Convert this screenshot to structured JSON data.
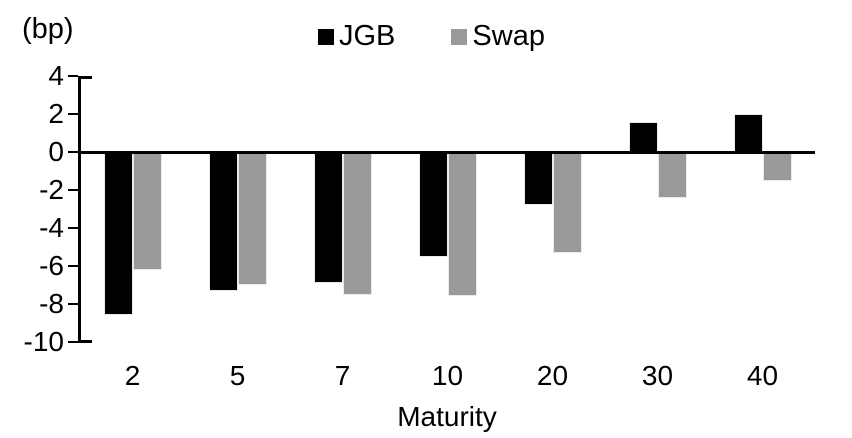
{
  "chart_data": {
    "type": "bar",
    "title": "",
    "unit_label": "(bp)",
    "xlabel": "Maturity",
    "categories": [
      "2",
      "5",
      "7",
      "10",
      "20",
      "30",
      "40"
    ],
    "series": [
      {
        "name": "JGB",
        "color": "#000000",
        "values": [
          -8.6,
          -7.3,
          -6.9,
          -5.5,
          -2.8,
          1.6,
          2.0
        ]
      },
      {
        "name": "Swap",
        "color": "#999999",
        "values": [
          -6.2,
          -7.0,
          -7.5,
          -7.6,
          -5.3,
          -2.4,
          -1.5
        ]
      }
    ],
    "y_ticks": [
      4,
      2,
      0,
      -2,
      -4,
      -6,
      -8,
      -10
    ],
    "ylim": [
      -10,
      4
    ],
    "grid": false,
    "legend_position": "top-center",
    "axis_color": "#000000",
    "background_color": "#ffffff"
  }
}
